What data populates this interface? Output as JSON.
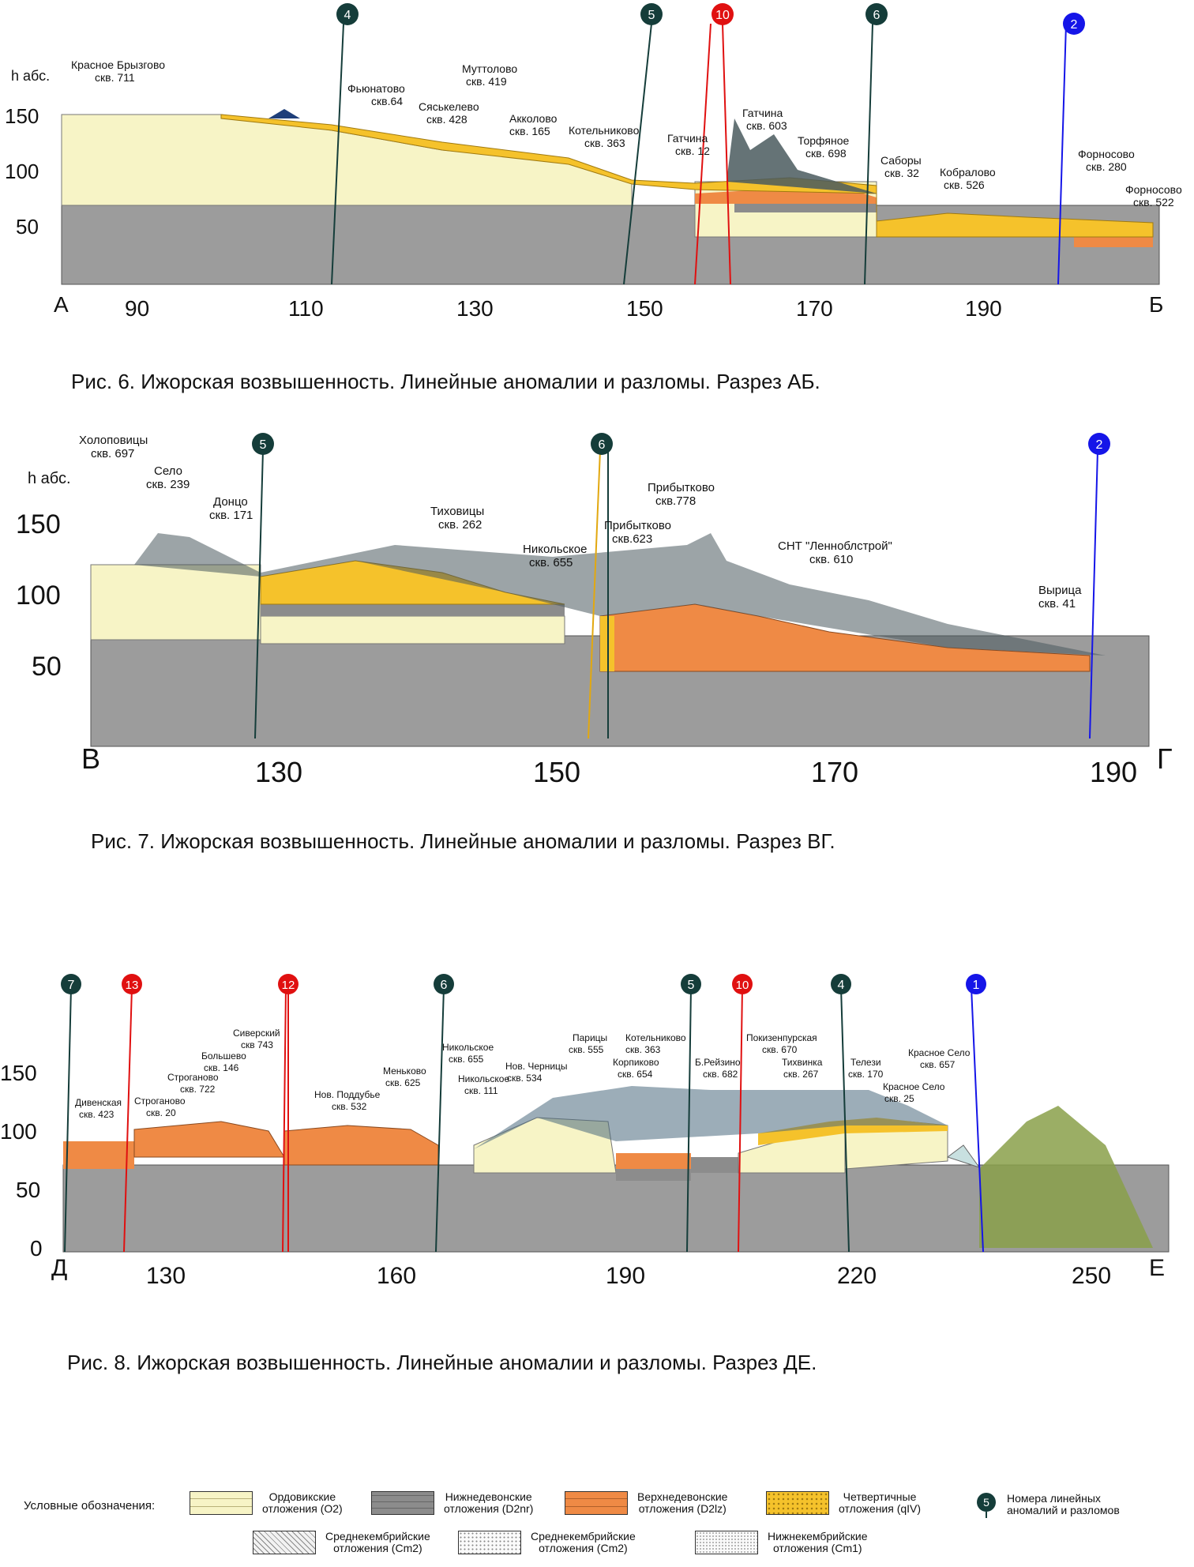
{
  "colors": {
    "ordovician": "#f7f4c6",
    "ordovician_line": "#b8b27a",
    "d2nr": "#8c8c8c",
    "d2lz": "#ef8a45",
    "quaternary": "#f5c22b",
    "basement": "#9c9c9c",
    "terrain": "#4a5a5e",
    "dark_marker": "#153d3a",
    "red_marker": "#e01010",
    "blue_marker": "#1515e8"
  },
  "sections": [
    {
      "id": "ab",
      "start_label": "А",
      "end_label": "Б",
      "y_title": "h абс.",
      "x_ticks": [
        "90",
        "110",
        "130",
        "150",
        "170",
        "190"
      ],
      "y_ticks": [
        "150",
        "100",
        "50"
      ],
      "caption": "Рис. 6. Ижорская возвышенность. Линейные аномалии и разломы. Разрез АБ.",
      "markers": [
        {
          "num": "4",
          "kind": "dark"
        },
        {
          "num": "5",
          "kind": "dark"
        },
        {
          "num": "10",
          "kind": "red"
        },
        {
          "num": "6",
          "kind": "dark"
        },
        {
          "num": "2",
          "kind": "blue"
        }
      ],
      "wells": [
        {
          "name": "Красное Брызгово",
          "id": "скв. 711"
        },
        {
          "name": "Фьюнатово",
          "id": "скв.64"
        },
        {
          "name": "Сяськелево",
          "id": "скв. 428"
        },
        {
          "name": "Муттолово",
          "id": "скв. 419"
        },
        {
          "name": "Акколово",
          "id": "скв. 165"
        },
        {
          "name": "Котельниково",
          "id": "скв. 363"
        },
        {
          "name": "Гатчина",
          "id": "скв. 12"
        },
        {
          "name": "Гатчина",
          "id": "скв. 603"
        },
        {
          "name": "Торфяное",
          "id": "скв. 698"
        },
        {
          "name": "Саборы",
          "id": "скв. 32"
        },
        {
          "name": "Кобралово",
          "id": "скв. 526"
        },
        {
          "name": "Форносово",
          "id": "скв. 280"
        },
        {
          "name": "Форносово",
          "id": "скв. 522"
        }
      ]
    },
    {
      "id": "vg",
      "start_label": "В",
      "end_label": "Г",
      "y_title": "h абс.",
      "x_ticks": [
        "130",
        "150",
        "170",
        "190"
      ],
      "y_ticks": [
        "150",
        "100",
        "50"
      ],
      "caption": "Рис. 7. Ижорская возвышенность. Линейные аномалии и разломы. Разрез ВГ.",
      "markers": [
        {
          "num": "5",
          "kind": "dark"
        },
        {
          "num": "6",
          "kind": "dark"
        },
        {
          "num": "2",
          "kind": "blue"
        }
      ],
      "wells": [
        {
          "name": "Холоповицы",
          "id": "скв. 697"
        },
        {
          "name": "Село",
          "id": "скв. 239"
        },
        {
          "name": "Донцо",
          "id": "скв. 171"
        },
        {
          "name": "Тиховицы",
          "id": "скв. 262"
        },
        {
          "name": "Никольское",
          "id": "скв. 655"
        },
        {
          "name": "Прибытково",
          "id": "скв.623"
        },
        {
          "name": "Прибытково",
          "id": "скв.778"
        },
        {
          "name": "СНТ \"Ленноблстрой\"",
          "id": "скв. 610"
        },
        {
          "name": "Вырица",
          "id": "скв. 41"
        }
      ]
    },
    {
      "id": "de",
      "start_label": "Д",
      "end_label": "Е",
      "y_title": "",
      "x_ticks": [
        "130",
        "160",
        "190",
        "220",
        "250"
      ],
      "y_ticks": [
        "150",
        "100",
        "50",
        "0"
      ],
      "caption": "Рис. 8. Ижорская возвышенность. Линейные аномалии и разломы. Разрез ДЕ.",
      "markers": [
        {
          "num": "7",
          "kind": "dark"
        },
        {
          "num": "13",
          "kind": "red"
        },
        {
          "num": "12",
          "kind": "red"
        },
        {
          "num": "6",
          "kind": "dark"
        },
        {
          "num": "5",
          "kind": "dark"
        },
        {
          "num": "10",
          "kind": "red"
        },
        {
          "num": "4",
          "kind": "dark"
        },
        {
          "num": "1",
          "kind": "blue"
        }
      ],
      "wells": [
        {
          "name": "Дивенская",
          "id": "скв. 423"
        },
        {
          "name": "Строганово",
          "id": "скв. 20"
        },
        {
          "name": "Строганово",
          "id": "скв. 722"
        },
        {
          "name": "Большево",
          "id": "скв. 146"
        },
        {
          "name": "Сиверский",
          "id": "скв 743"
        },
        {
          "name": "Нов. Поддубье",
          "id": "скв. 532"
        },
        {
          "name": "Меньково",
          "id": "скв. 625"
        },
        {
          "name": "Никольское",
          "id": "скв. 655"
        },
        {
          "name": "Никольское",
          "id": "скв. 111"
        },
        {
          "name": "Нов. Черницы",
          "id": "скв. 534"
        },
        {
          "name": "Парицы",
          "id": "скв. 555"
        },
        {
          "name": "Котельниково",
          "id": "скв. 363"
        },
        {
          "name": "Корпиково",
          "id": "скв. 654"
        },
        {
          "name": "Б.Рейзино",
          "id": "скв. 682"
        },
        {
          "name": "Покизенпурская",
          "id": "скв. 670"
        },
        {
          "name": "Тихвинка",
          "id": "скв. 267"
        },
        {
          "name": "Телези",
          "id": "скв. 170"
        },
        {
          "name": "Красное Село",
          "id": "скв. 25"
        },
        {
          "name": "Красное Село",
          "id": "скв. 657"
        }
      ]
    }
  ],
  "legend": {
    "title": "Условные обозначения:",
    "items": [
      {
        "key": "ordovician",
        "text": "Ордовикские\nотложения (O2)"
      },
      {
        "key": "d2nr",
        "text": "Нижнедевонские\nотложения (D2nr)"
      },
      {
        "key": "d2lz",
        "text": "Верхнедевонские\nотложения (D2lz)"
      },
      {
        "key": "quaternary",
        "text": "Четвертичные\nотложения (qIV)"
      },
      {
        "key": "marker",
        "text": "Номера линейных\nаномалий и разломов",
        "num": "5"
      },
      {
        "key": "cm2a",
        "text": "Среднекембрийские\nотложения (Cm2)"
      },
      {
        "key": "cm2b",
        "text": "Среднекембрийские\nотложения (Cm2)"
      },
      {
        "key": "cm1",
        "text": "Нижнекембрийские\nотложения (Cm1)"
      }
    ]
  }
}
